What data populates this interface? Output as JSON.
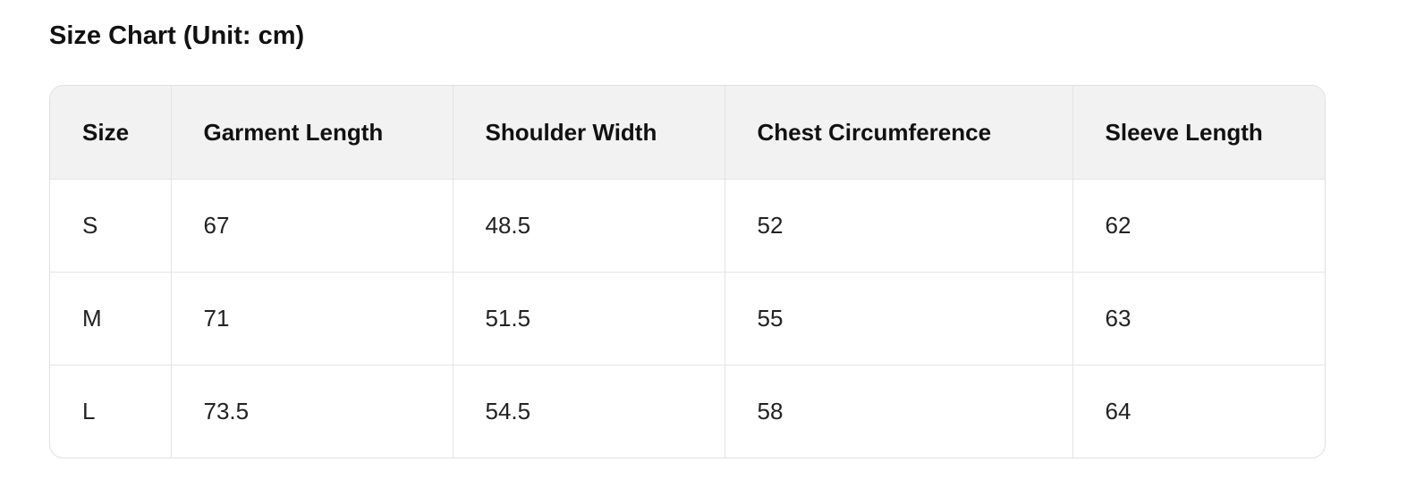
{
  "title": "Size Chart (Unit: cm)",
  "table": {
    "headers": [
      "Size",
      "Garment Length",
      "Shoulder Width",
      "Chest Circumference",
      "Sleeve Length"
    ],
    "rows": [
      [
        "S",
        "67",
        "48.5",
        "52",
        "62"
      ],
      [
        "M",
        "71",
        "51.5",
        "55",
        "63"
      ],
      [
        "L",
        "73.5",
        "54.5",
        "58",
        "64"
      ]
    ]
  },
  "colors": {
    "header_bg": "#f2f2f2",
    "border": "#e0e0e0"
  }
}
